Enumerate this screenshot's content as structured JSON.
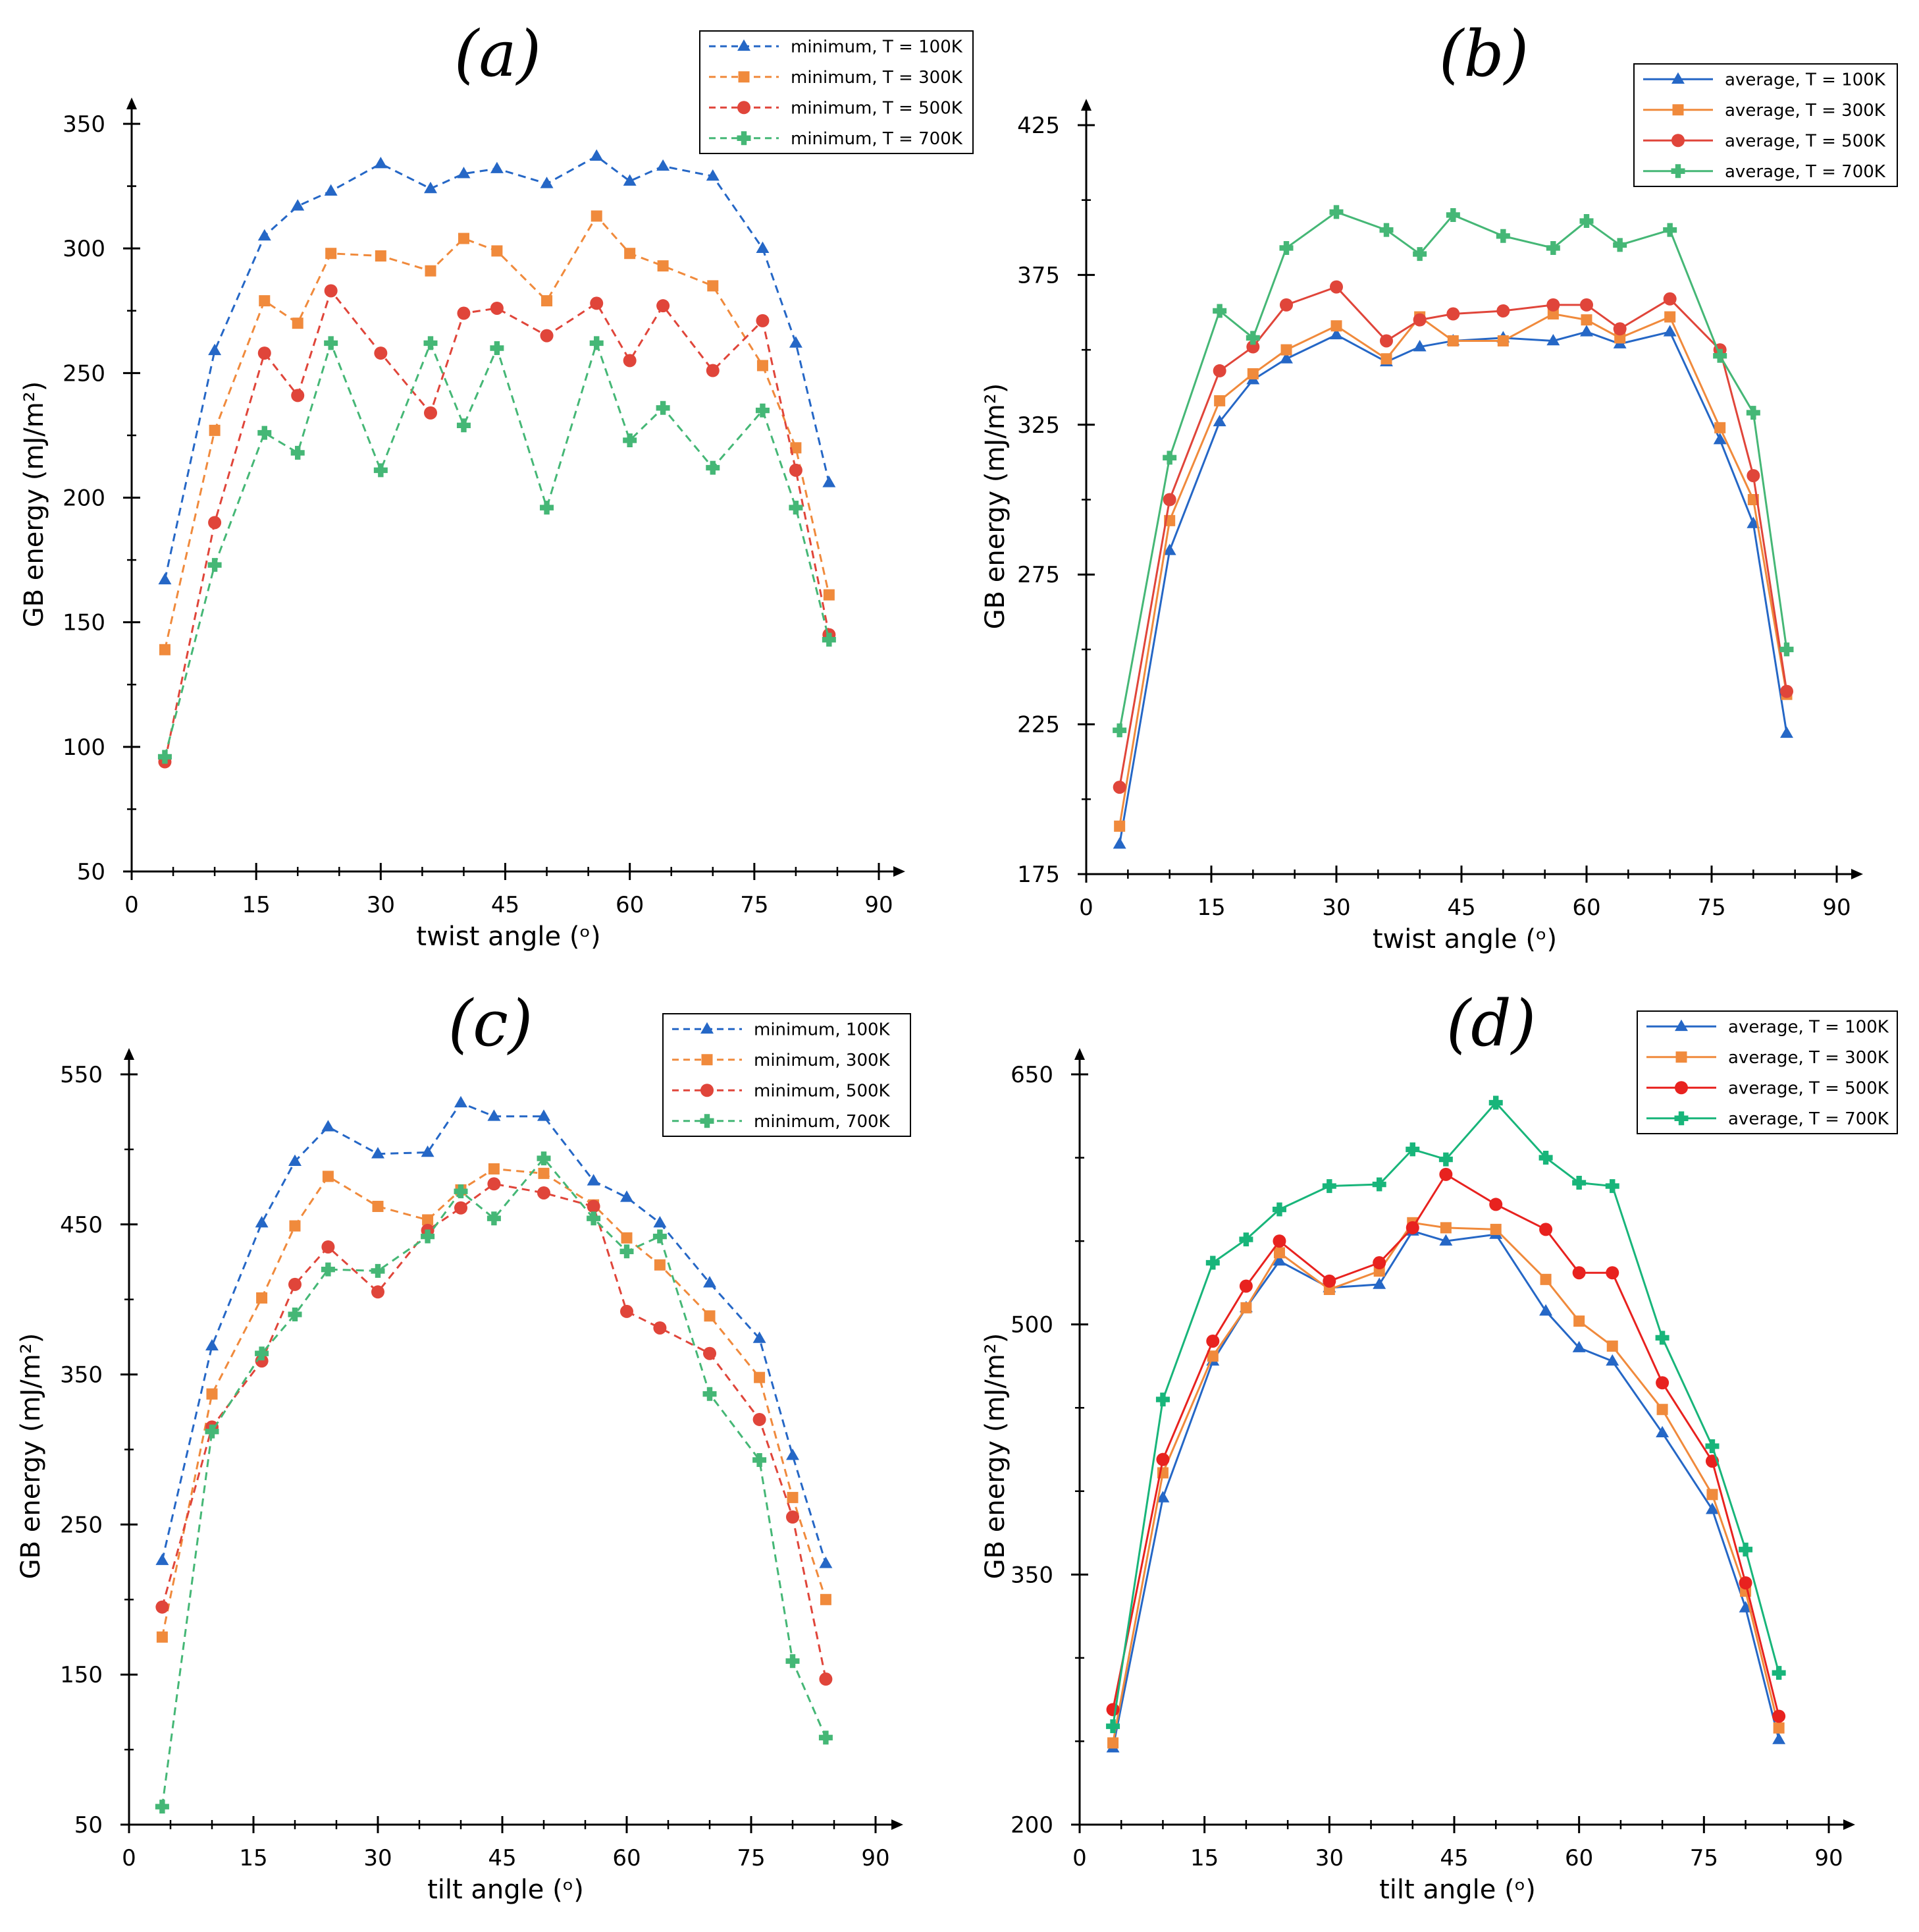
{
  "chart_data": [
    {
      "type": "line",
      "panel_label": "(a)",
      "xlabel": "twist angle (ᵒ)",
      "ylabel": "GB energy (mJ/m²)",
      "xlim": [
        0,
        90
      ],
      "ylim": [
        50,
        350
      ],
      "xticks": [
        0,
        15,
        30,
        45,
        60,
        75,
        90
      ],
      "yticks": [
        50,
        100,
        150,
        200,
        250,
        300,
        350
      ],
      "x": [
        4,
        10,
        16,
        20,
        24,
        30,
        36,
        40,
        44,
        50,
        56,
        60,
        64,
        70,
        76,
        80,
        84
      ],
      "legend_position": "top-right",
      "series": [
        {
          "name": "minimum, T = 100K",
          "color": "#2567c6",
          "marker": "triangle",
          "dashed": true,
          "values": [
            167,
            259,
            305,
            317,
            323,
            334,
            324,
            330,
            332,
            326,
            337,
            327,
            333,
            329,
            300,
            262,
            206
          ]
        },
        {
          "name": "minimum, T = 300K",
          "color": "#f08a3c",
          "marker": "square",
          "dashed": true,
          "values": [
            139,
            227,
            279,
            270,
            298,
            297,
            291,
            304,
            299,
            279,
            313,
            298,
            293,
            285,
            253,
            220,
            161
          ]
        },
        {
          "name": "minimum, T = 500K",
          "color": "#e0453a",
          "marker": "circle",
          "dashed": true,
          "values": [
            94,
            190,
            258,
            241,
            283,
            258,
            234,
            274,
            276,
            265,
            278,
            255,
            277,
            251,
            271,
            211,
            145
          ]
        },
        {
          "name": "minimum, T = 700K",
          "color": "#45b776",
          "marker": "plus",
          "dashed": true,
          "values": [
            96,
            173,
            226,
            218,
            262,
            211,
            262,
            229,
            260,
            196,
            262,
            223,
            236,
            212,
            235,
            196,
            143
          ]
        }
      ]
    },
    {
      "type": "line",
      "panel_label": "(b)",
      "xlabel": "twist angle (ᵒ)",
      "ylabel": "GB energy (mJ/m²)",
      "xlim": [
        0,
        90
      ],
      "ylim": [
        175,
        425
      ],
      "xticks": [
        0,
        15,
        30,
        45,
        60,
        75,
        90
      ],
      "yticks": [
        175,
        225,
        275,
        325,
        375,
        425
      ],
      "x": [
        4,
        10,
        16,
        20,
        24,
        30,
        36,
        40,
        44,
        50,
        56,
        60,
        64,
        70,
        76,
        80,
        84
      ],
      "legend_position": "top-right",
      "series": [
        {
          "name": "average, T = 100K",
          "color": "#2567c6",
          "marker": "triangle",
          "dashed": false,
          "values": [
            185,
            283,
            326,
            340,
            347,
            355,
            346,
            351,
            353,
            354,
            353,
            356,
            352,
            356,
            320,
            292,
            222
          ]
        },
        {
          "name": "average, T = 300K",
          "color": "#f08a3c",
          "marker": "square",
          "dashed": false,
          "values": [
            191,
            293,
            333,
            342,
            350,
            358,
            347,
            361,
            353,
            353,
            362,
            360,
            354,
            361,
            324,
            300,
            235
          ]
        },
        {
          "name": "average, T = 500K",
          "color": "#e0453a",
          "marker": "circle",
          "dashed": false,
          "values": [
            204,
            300,
            343,
            351,
            365,
            371,
            353,
            360,
            362,
            363,
            365,
            365,
            357,
            367,
            350,
            308,
            236
          ]
        },
        {
          "name": "average, T = 700K",
          "color": "#45b776",
          "marker": "plus",
          "dashed": false,
          "values": [
            223,
            314,
            363,
            354,
            384,
            396,
            390,
            382,
            395,
            388,
            384,
            393,
            385,
            390,
            348,
            329,
            250
          ]
        }
      ]
    },
    {
      "type": "line",
      "panel_label": "(c)",
      "xlabel": "tilt angle (ᵒ)",
      "ylabel": "GB energy (mJ/m²)",
      "xlim": [
        0,
        90
      ],
      "ylim": [
        50,
        550
      ],
      "xticks": [
        0,
        15,
        30,
        45,
        60,
        75,
        90
      ],
      "yticks": [
        50,
        150,
        250,
        350,
        450,
        550
      ],
      "x": [
        4,
        10,
        16,
        20,
        24,
        30,
        36,
        40,
        44,
        50,
        56,
        60,
        64,
        70,
        76,
        80,
        84
      ],
      "legend_position": "top-right",
      "series": [
        {
          "name": "minimum, 100K",
          "color": "#2567c6",
          "marker": "triangle",
          "dashed": true,
          "values": [
            226,
            369,
            451,
            492,
            515,
            497,
            498,
            531,
            522,
            522,
            479,
            468,
            451,
            411,
            374,
            296,
            224
          ]
        },
        {
          "name": "minimum, 300K",
          "color": "#f08a3c",
          "marker": "square",
          "dashed": true,
          "values": [
            175,
            337,
            401,
            449,
            482,
            462,
            453,
            473,
            487,
            484,
            463,
            441,
            423,
            389,
            348,
            268,
            200
          ]
        },
        {
          "name": "minimum, 500K",
          "color": "#e0453a",
          "marker": "circle",
          "dashed": true,
          "values": [
            195,
            315,
            359,
            410,
            435,
            405,
            446,
            461,
            477,
            471,
            462,
            392,
            381,
            364,
            320,
            255,
            147
          ]
        },
        {
          "name": "minimum, 700K",
          "color": "#45b776",
          "marker": "plus",
          "dashed": true,
          "values": [
            62,
            312,
            364,
            390,
            420,
            419,
            442,
            472,
            454,
            494,
            454,
            432,
            442,
            337,
            293,
            159,
            108
          ]
        }
      ]
    },
    {
      "type": "line",
      "panel_label": "(d)",
      "xlabel": "tilt angle (ᵒ)",
      "ylabel": "GB energy (mJ/m²)",
      "xlim": [
        0,
        90
      ],
      "ylim": [
        200,
        650
      ],
      "xticks": [
        0,
        15,
        30,
        45,
        60,
        75,
        90
      ],
      "yticks": [
        200,
        350,
        500,
        650
      ],
      "x": [
        4,
        10,
        16,
        20,
        24,
        30,
        36,
        40,
        44,
        50,
        56,
        60,
        64,
        70,
        76,
        80,
        84
      ],
      "legend_position": "top-right",
      "series": [
        {
          "name": "average, T = 100K",
          "color": "#2567c6",
          "marker": "triangle",
          "dashed": false,
          "values": [
            246,
            396,
            478,
            510,
            538,
            522,
            524,
            556,
            550,
            554,
            508,
            486,
            478,
            435,
            389,
            330,
            251
          ]
        },
        {
          "name": "average, T = 300K",
          "color": "#f08a3c",
          "marker": "square",
          "dashed": false,
          "values": [
            249,
            411,
            481,
            510,
            543,
            521,
            532,
            561,
            558,
            557,
            527,
            502,
            487,
            449,
            398,
            340,
            258
          ]
        },
        {
          "name": "average, T = 500K",
          "color": "#e8221f",
          "marker": "circle",
          "dashed": false,
          "values": [
            269,
            419,
            490,
            523,
            550,
            526,
            537,
            558,
            590,
            572,
            557,
            531,
            531,
            465,
            418,
            345,
            265
          ]
        },
        {
          "name": "average, T = 700K",
          "color": "#18b57a",
          "marker": "plus",
          "dashed": false,
          "values": [
            259,
            455,
            537,
            551,
            569,
            583,
            584,
            605,
            599,
            633,
            600,
            585,
            583,
            492,
            427,
            365,
            291
          ]
        }
      ]
    }
  ]
}
